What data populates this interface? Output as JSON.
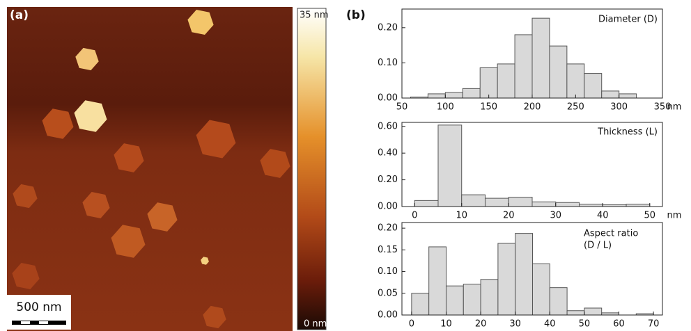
{
  "panel_labels": [
    "(a)",
    "(b)"
  ],
  "afm": {
    "scale_bar": "500 nm",
    "colorbar_top": "35 nm",
    "colorbar_bottom": "0 nm"
  },
  "chart_data": [
    {
      "type": "histogram",
      "annotation": [
        "Diameter (D)"
      ],
      "xlabel": "nm",
      "bins": [
        60,
        80,
        100,
        120,
        140,
        160,
        180,
        200,
        220,
        240,
        260,
        280,
        300,
        320
      ],
      "values": [
        0.003,
        0.012,
        0.016,
        0.027,
        0.086,
        0.097,
        0.18,
        0.227,
        0.148,
        0.097,
        0.07,
        0.02,
        0.012
      ],
      "color": "#d9d9d9",
      "xlim": [
        50,
        350
      ],
      "xticks": [
        50,
        100,
        150,
        200,
        250,
        300,
        350
      ],
      "ylim": [
        0,
        0.253
      ],
      "yticks": [
        {
          "value": 0,
          "label": "0.00"
        },
        {
          "value": 0.1,
          "label": "0.10"
        },
        {
          "value": 0.2,
          "label": "0.20"
        }
      ]
    },
    {
      "type": "histogram",
      "annotation": [
        "Thickness (L)"
      ],
      "xlabel": "nm",
      "bins": [
        0,
        5,
        10,
        15,
        20,
        25,
        30,
        35,
        40,
        45,
        50
      ],
      "values": [
        0.045,
        0.61,
        0.088,
        0.062,
        0.07,
        0.035,
        0.03,
        0.018,
        0.013,
        0.018
      ],
      "color": "#d9d9d9",
      "xlim": [
        -2.7,
        52.7
      ],
      "xticks": [
        0,
        10,
        20,
        30,
        40,
        50
      ],
      "ylim": [
        0,
        0.63
      ],
      "yticks": [
        {
          "value": 0,
          "label": "0.00"
        },
        {
          "value": 0.2,
          "label": "0.20"
        },
        {
          "value": 0.4,
          "label": "0.40"
        },
        {
          "value": 0.6,
          "label": "0.60"
        }
      ]
    },
    {
      "type": "histogram",
      "annotation": [
        "Aspect ratio",
        "(D / L)"
      ],
      "bins": [
        0,
        5,
        10,
        15,
        20,
        25,
        30,
        35,
        40,
        45,
        50,
        55,
        60,
        65,
        70
      ],
      "values": [
        0.05,
        0.157,
        0.067,
        0.071,
        0.082,
        0.165,
        0.188,
        0.118,
        0.063,
        0.01,
        0.016,
        0.005,
        0,
        0.003
      ],
      "color": "#d9d9d9",
      "xlim": [
        -2.8,
        72.6
      ],
      "xticks": [
        0,
        10,
        20,
        30,
        40,
        50,
        60,
        70
      ],
      "ylim": [
        0,
        0.213
      ],
      "yticks": [
        {
          "value": 0,
          "label": "0.00"
        },
        {
          "value": 0.05,
          "label": "0.05"
        },
        {
          "value": 0.1,
          "label": "0.10"
        },
        {
          "value": 0.15,
          "label": "0.15"
        },
        {
          "value": 0.2,
          "label": "0.20"
        }
      ]
    }
  ]
}
